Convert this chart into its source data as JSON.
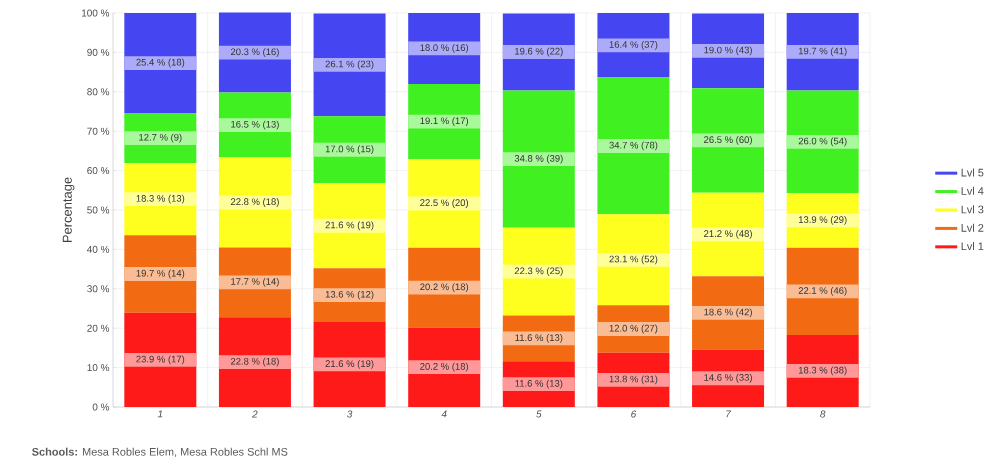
{
  "chart_data": {
    "type": "bar",
    "stacked": true,
    "ylabel": "Percentage",
    "categories": [
      "1",
      "2",
      "3",
      "4",
      "5",
      "6",
      "7",
      "8"
    ],
    "ylim": [
      0,
      100
    ],
    "yticks": [
      {
        "value": 0,
        "label": "0 %"
      },
      {
        "value": 10,
        "label": "10 %"
      },
      {
        "value": 20,
        "label": "20 %"
      },
      {
        "value": 30,
        "label": "30 %"
      },
      {
        "value": 40,
        "label": "40 %"
      },
      {
        "value": 50,
        "label": "50 %"
      },
      {
        "value": 60,
        "label": "60 %"
      },
      {
        "value": 70,
        "label": "70 %"
      },
      {
        "value": 80,
        "label": "80 %"
      },
      {
        "value": 90,
        "label": "90 %"
      },
      {
        "value": 100,
        "label": "100 %"
      }
    ],
    "grid": true,
    "legend": "right",
    "series": [
      {
        "name": "Lvl 1",
        "color": "#ff1a1a",
        "values": [
          23.9,
          22.8,
          21.6,
          20.2,
          11.6,
          13.8,
          14.6,
          18.3
        ],
        "value_labels": [
          "23.9 % (17)",
          "22.8 % (18)",
          "21.6 % (19)",
          "20.2 % (18)",
          "11.6 % (13)",
          "13.8 % (31)",
          "14.6 % (33)",
          "18.3 % (38)"
        ]
      },
      {
        "name": "Lvl 2",
        "color": "#f26b12",
        "values": [
          19.7,
          17.7,
          13.6,
          20.2,
          11.6,
          12.0,
          18.6,
          22.1
        ],
        "value_labels": [
          "19.7 % (14)",
          "17.7 % (14)",
          "13.6 % (12)",
          "20.2 % (18)",
          "11.6 % (13)",
          "12.0 % (27)",
          "18.6 % (42)",
          "22.1 % (46)"
        ]
      },
      {
        "name": "Lvl 3",
        "color": "#ffff1f",
        "values": [
          18.3,
          22.8,
          21.6,
          22.5,
          22.3,
          23.1,
          21.2,
          13.9
        ],
        "value_labels": [
          "18.3 % (13)",
          "22.8 % (18)",
          "21.6 % (19)",
          "22.5 % (20)",
          "22.3 % (25)",
          "23.1 % (52)",
          "21.2 % (48)",
          "13.9 % (29)"
        ]
      },
      {
        "name": "Lvl 4",
        "color": "#40f020",
        "values": [
          12.7,
          16.5,
          17.0,
          19.1,
          34.8,
          34.7,
          26.5,
          26.0
        ],
        "value_labels": [
          "12.7 % (9)",
          "16.5 % (13)",
          "17.0 % (15)",
          "19.1 % (17)",
          "34.8 % (39)",
          "34.7 % (78)",
          "26.5 % (60)",
          "26.0 % (54)"
        ]
      },
      {
        "name": "Lvl 5",
        "color": "#4545f2",
        "values": [
          25.4,
          20.3,
          26.1,
          18.0,
          19.6,
          16.4,
          19.0,
          19.7
        ],
        "value_labels": [
          "25.4 % (18)",
          "20.3 % (16)",
          "26.1 % (23)",
          "18.0 % (16)",
          "19.6 % (22)",
          "16.4 % (37)",
          "19.0 % (43)",
          "19.7 % (41)"
        ]
      }
    ],
    "annotations": [
      "**Schools:** Mesa Robles Elem, Mesa Robles Schl MS"
    ]
  }
}
